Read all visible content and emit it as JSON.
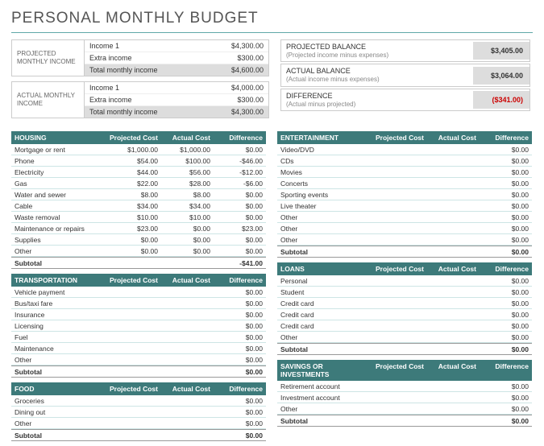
{
  "title": "PERSONAL MONTHLY BUDGET",
  "colors": {
    "teal": "#3d7a7a",
    "row_border": "#cde5e5",
    "neg": "#c00",
    "grey_fill": "#ddd"
  },
  "col_headers": {
    "projected": "Projected Cost",
    "actual": "Actual Cost",
    "diff": "Difference"
  },
  "subtotal_label": "Subtotal",
  "income": {
    "projected": {
      "label": "PROJECTED MONTHLY INCOME",
      "rows": [
        {
          "label": "Income 1",
          "value": "$4,300.00"
        },
        {
          "label": "Extra income",
          "value": "$300.00"
        },
        {
          "label": "Total monthly income",
          "value": "$4,600.00"
        }
      ]
    },
    "actual": {
      "label": "ACTUAL MONTHLY INCOME",
      "rows": [
        {
          "label": "Income 1",
          "value": "$4,000.00"
        },
        {
          "label": "Extra income",
          "value": "$300.00"
        },
        {
          "label": "Total monthly income",
          "value": "$4,300.00"
        }
      ]
    }
  },
  "balances": [
    {
      "label": "PROJECTED BALANCE",
      "sub": "(Projected income minus expenses)",
      "value": "$3,405.00",
      "neg": false
    },
    {
      "label": "ACTUAL BALANCE",
      "sub": "(Actual income minus expenses)",
      "value": "$3,064.00",
      "neg": false
    },
    {
      "label": "DIFFERENCE",
      "sub": "(Actual minus projected)",
      "value": "($341.00)",
      "neg": true
    }
  ],
  "left_categories": [
    {
      "name": "HOUSING",
      "rows": [
        {
          "label": "Mortgage or rent",
          "p": "$1,000.00",
          "a": "$1,000.00",
          "d": "$0.00"
        },
        {
          "label": "Phone",
          "p": "$54.00",
          "a": "$100.00",
          "d": "-$46.00"
        },
        {
          "label": "Electricity",
          "p": "$44.00",
          "a": "$56.00",
          "d": "-$12.00"
        },
        {
          "label": "Gas",
          "p": "$22.00",
          "a": "$28.00",
          "d": "-$6.00"
        },
        {
          "label": "Water and sewer",
          "p": "$8.00",
          "a": "$8.00",
          "d": "$0.00"
        },
        {
          "label": "Cable",
          "p": "$34.00",
          "a": "$34.00",
          "d": "$0.00"
        },
        {
          "label": "Waste removal",
          "p": "$10.00",
          "a": "$10.00",
          "d": "$0.00"
        },
        {
          "label": "Maintenance or repairs",
          "p": "$23.00",
          "a": "$0.00",
          "d": "$23.00"
        },
        {
          "label": "Supplies",
          "p": "$0.00",
          "a": "$0.00",
          "d": "$0.00"
        },
        {
          "label": "Other",
          "p": "$0.00",
          "a": "$0.00",
          "d": "$0.00"
        }
      ],
      "subtotal": {
        "p": "",
        "a": "",
        "d": "-$41.00"
      }
    },
    {
      "name": "TRANSPORTATION",
      "rows": [
        {
          "label": "Vehicle payment",
          "p": "",
          "a": "",
          "d": "$0.00"
        },
        {
          "label": "Bus/taxi fare",
          "p": "",
          "a": "",
          "d": "$0.00"
        },
        {
          "label": "Insurance",
          "p": "",
          "a": "",
          "d": "$0.00"
        },
        {
          "label": "Licensing",
          "p": "",
          "a": "",
          "d": "$0.00"
        },
        {
          "label": "Fuel",
          "p": "",
          "a": "",
          "d": "$0.00"
        },
        {
          "label": "Maintenance",
          "p": "",
          "a": "",
          "d": "$0.00"
        },
        {
          "label": "Other",
          "p": "",
          "a": "",
          "d": "$0.00"
        }
      ],
      "subtotal": {
        "p": "",
        "a": "",
        "d": "$0.00"
      }
    },
    {
      "name": "FOOD",
      "rows": [
        {
          "label": "Groceries",
          "p": "",
          "a": "",
          "d": "$0.00"
        },
        {
          "label": "Dining out",
          "p": "",
          "a": "",
          "d": "$0.00"
        },
        {
          "label": "Other",
          "p": "",
          "a": "",
          "d": "$0.00"
        }
      ],
      "subtotal": {
        "p": "",
        "a": "",
        "d": "$0.00"
      }
    }
  ],
  "right_categories": [
    {
      "name": "ENTERTAINMENT",
      "rows": [
        {
          "label": "Video/DVD",
          "p": "",
          "a": "",
          "d": "$0.00"
        },
        {
          "label": "CDs",
          "p": "",
          "a": "",
          "d": "$0.00"
        },
        {
          "label": "Movies",
          "p": "",
          "a": "",
          "d": "$0.00"
        },
        {
          "label": "Concerts",
          "p": "",
          "a": "",
          "d": "$0.00"
        },
        {
          "label": "Sporting events",
          "p": "",
          "a": "",
          "d": "$0.00"
        },
        {
          "label": "Live theater",
          "p": "",
          "a": "",
          "d": "$0.00"
        },
        {
          "label": "Other",
          "p": "",
          "a": "",
          "d": "$0.00"
        },
        {
          "label": "Other",
          "p": "",
          "a": "",
          "d": "$0.00"
        },
        {
          "label": "Other",
          "p": "",
          "a": "",
          "d": "$0.00"
        }
      ],
      "subtotal": {
        "p": "",
        "a": "",
        "d": "$0.00"
      }
    },
    {
      "name": "LOANS",
      "rows": [
        {
          "label": "Personal",
          "p": "",
          "a": "",
          "d": "$0.00"
        },
        {
          "label": "Student",
          "p": "",
          "a": "",
          "d": "$0.00"
        },
        {
          "label": "Credit card",
          "p": "",
          "a": "",
          "d": "$0.00"
        },
        {
          "label": "Credit card",
          "p": "",
          "a": "",
          "d": "$0.00"
        },
        {
          "label": "Credit card",
          "p": "",
          "a": "",
          "d": "$0.00"
        },
        {
          "label": "Other",
          "p": "",
          "a": "",
          "d": "$0.00"
        }
      ],
      "subtotal": {
        "p": "",
        "a": "",
        "d": "$0.00"
      }
    },
    {
      "name": "SAVINGS OR INVESTMENTS",
      "rows": [
        {
          "label": "Retirement account",
          "p": "",
          "a": "",
          "d": "$0.00"
        },
        {
          "label": "Investment account",
          "p": "",
          "a": "",
          "d": "$0.00"
        },
        {
          "label": "Other",
          "p": "",
          "a": "",
          "d": "$0.00"
        }
      ],
      "subtotal": {
        "p": "",
        "a": "",
        "d": "$0.00"
      }
    }
  ]
}
